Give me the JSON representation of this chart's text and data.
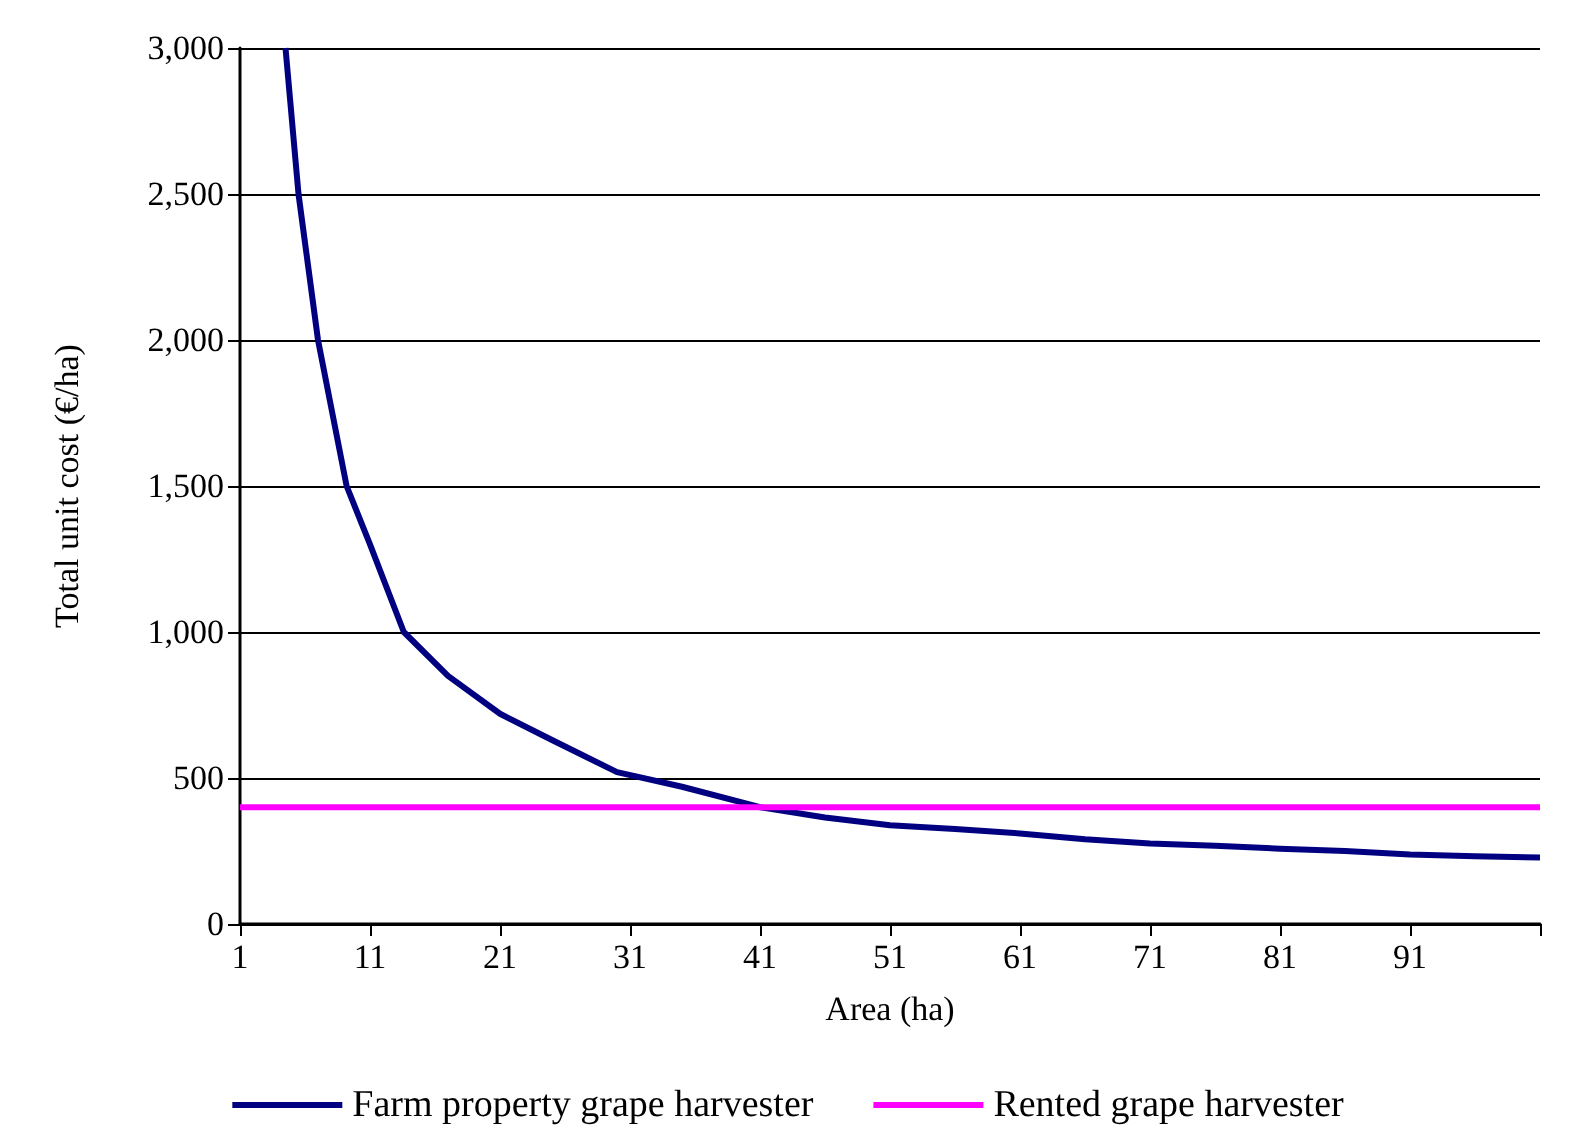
{
  "chart_data": {
    "type": "line",
    "xlabel": "Area (ha)",
    "ylabel": "Total unit cost (€/ha)",
    "xlim": [
      1,
      101
    ],
    "xticks": [
      1,
      11,
      21,
      31,
      41,
      51,
      61,
      71,
      81,
      91,
      {
        "value": 101,
        "label": null
      }
    ],
    "ylim": [
      0,
      3000
    ],
    "yticks": [
      {
        "value": 0,
        "label": "0"
      },
      {
        "value": 500,
        "label": "500"
      },
      {
        "value": 1000,
        "label": "1,000"
      },
      {
        "value": 1500,
        "label": "1,500"
      },
      {
        "value": 2000,
        "label": "2,000"
      },
      {
        "value": 2500,
        "label": "2,500"
      },
      {
        "value": 3000,
        "label": "3,000"
      }
    ],
    "grid": "y",
    "legend": "bottom",
    "marker": "none",
    "series": [
      {
        "name": "Farm property grape harvester",
        "color": "#000080",
        "x": [
          4.5,
          5.5,
          7,
          9.2,
          11,
          13.6,
          17,
          21,
          25,
          30,
          35,
          41,
          46,
          51,
          56,
          61,
          66,
          71,
          76,
          81,
          86,
          91,
          96,
          101
        ],
        "values": [
          3000,
          2500,
          2000,
          1500,
          1300,
          1000,
          850,
          720,
          630,
          520,
          470,
          400,
          365,
          338,
          325,
          310,
          290,
          276,
          268,
          258,
          250,
          238,
          232,
          228
        ]
      },
      {
        "name": "Rented grape harvester",
        "color": "#ff00ff",
        "x": [
          1,
          101
        ],
        "values": [
          400,
          400
        ]
      }
    ]
  }
}
